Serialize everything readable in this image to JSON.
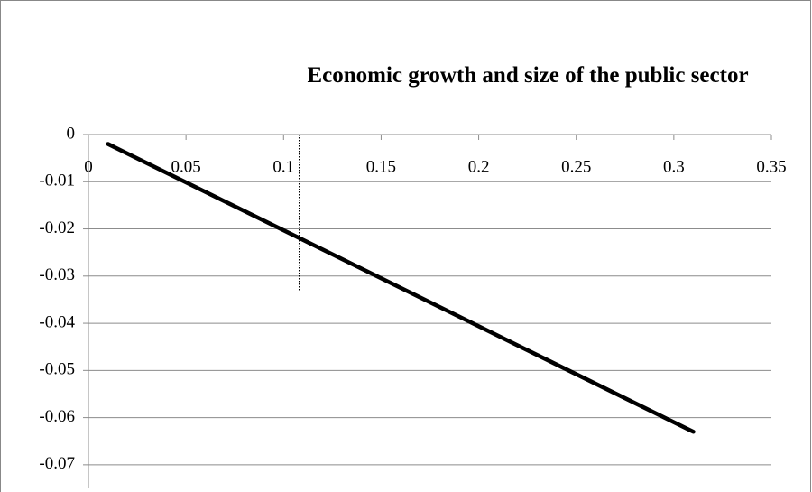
{
  "chart_data": {
    "type": "line",
    "title": "Economic growth and size of the public sector",
    "x": [
      0.01,
      0.31
    ],
    "series": [
      {
        "color": "#000000",
        "values": [
          -0.002,
          -0.063
        ]
      }
    ],
    "reference_line": {
      "x": [
        0.108,
        0.108
      ],
      "y": [
        0,
        -0.033
      ],
      "color": "#000000"
    },
    "xlim": [
      0,
      0.35
    ],
    "xticks": [
      0,
      0.05,
      0.1,
      0.15,
      0.2,
      0.25,
      0.3,
      0.35
    ],
    "ylim": [
      -0.075,
      0
    ],
    "yticks": [
      0,
      -0.01,
      -0.02,
      -0.03,
      -0.04,
      -0.05,
      -0.06,
      -0.07
    ],
    "grid": true
  }
}
